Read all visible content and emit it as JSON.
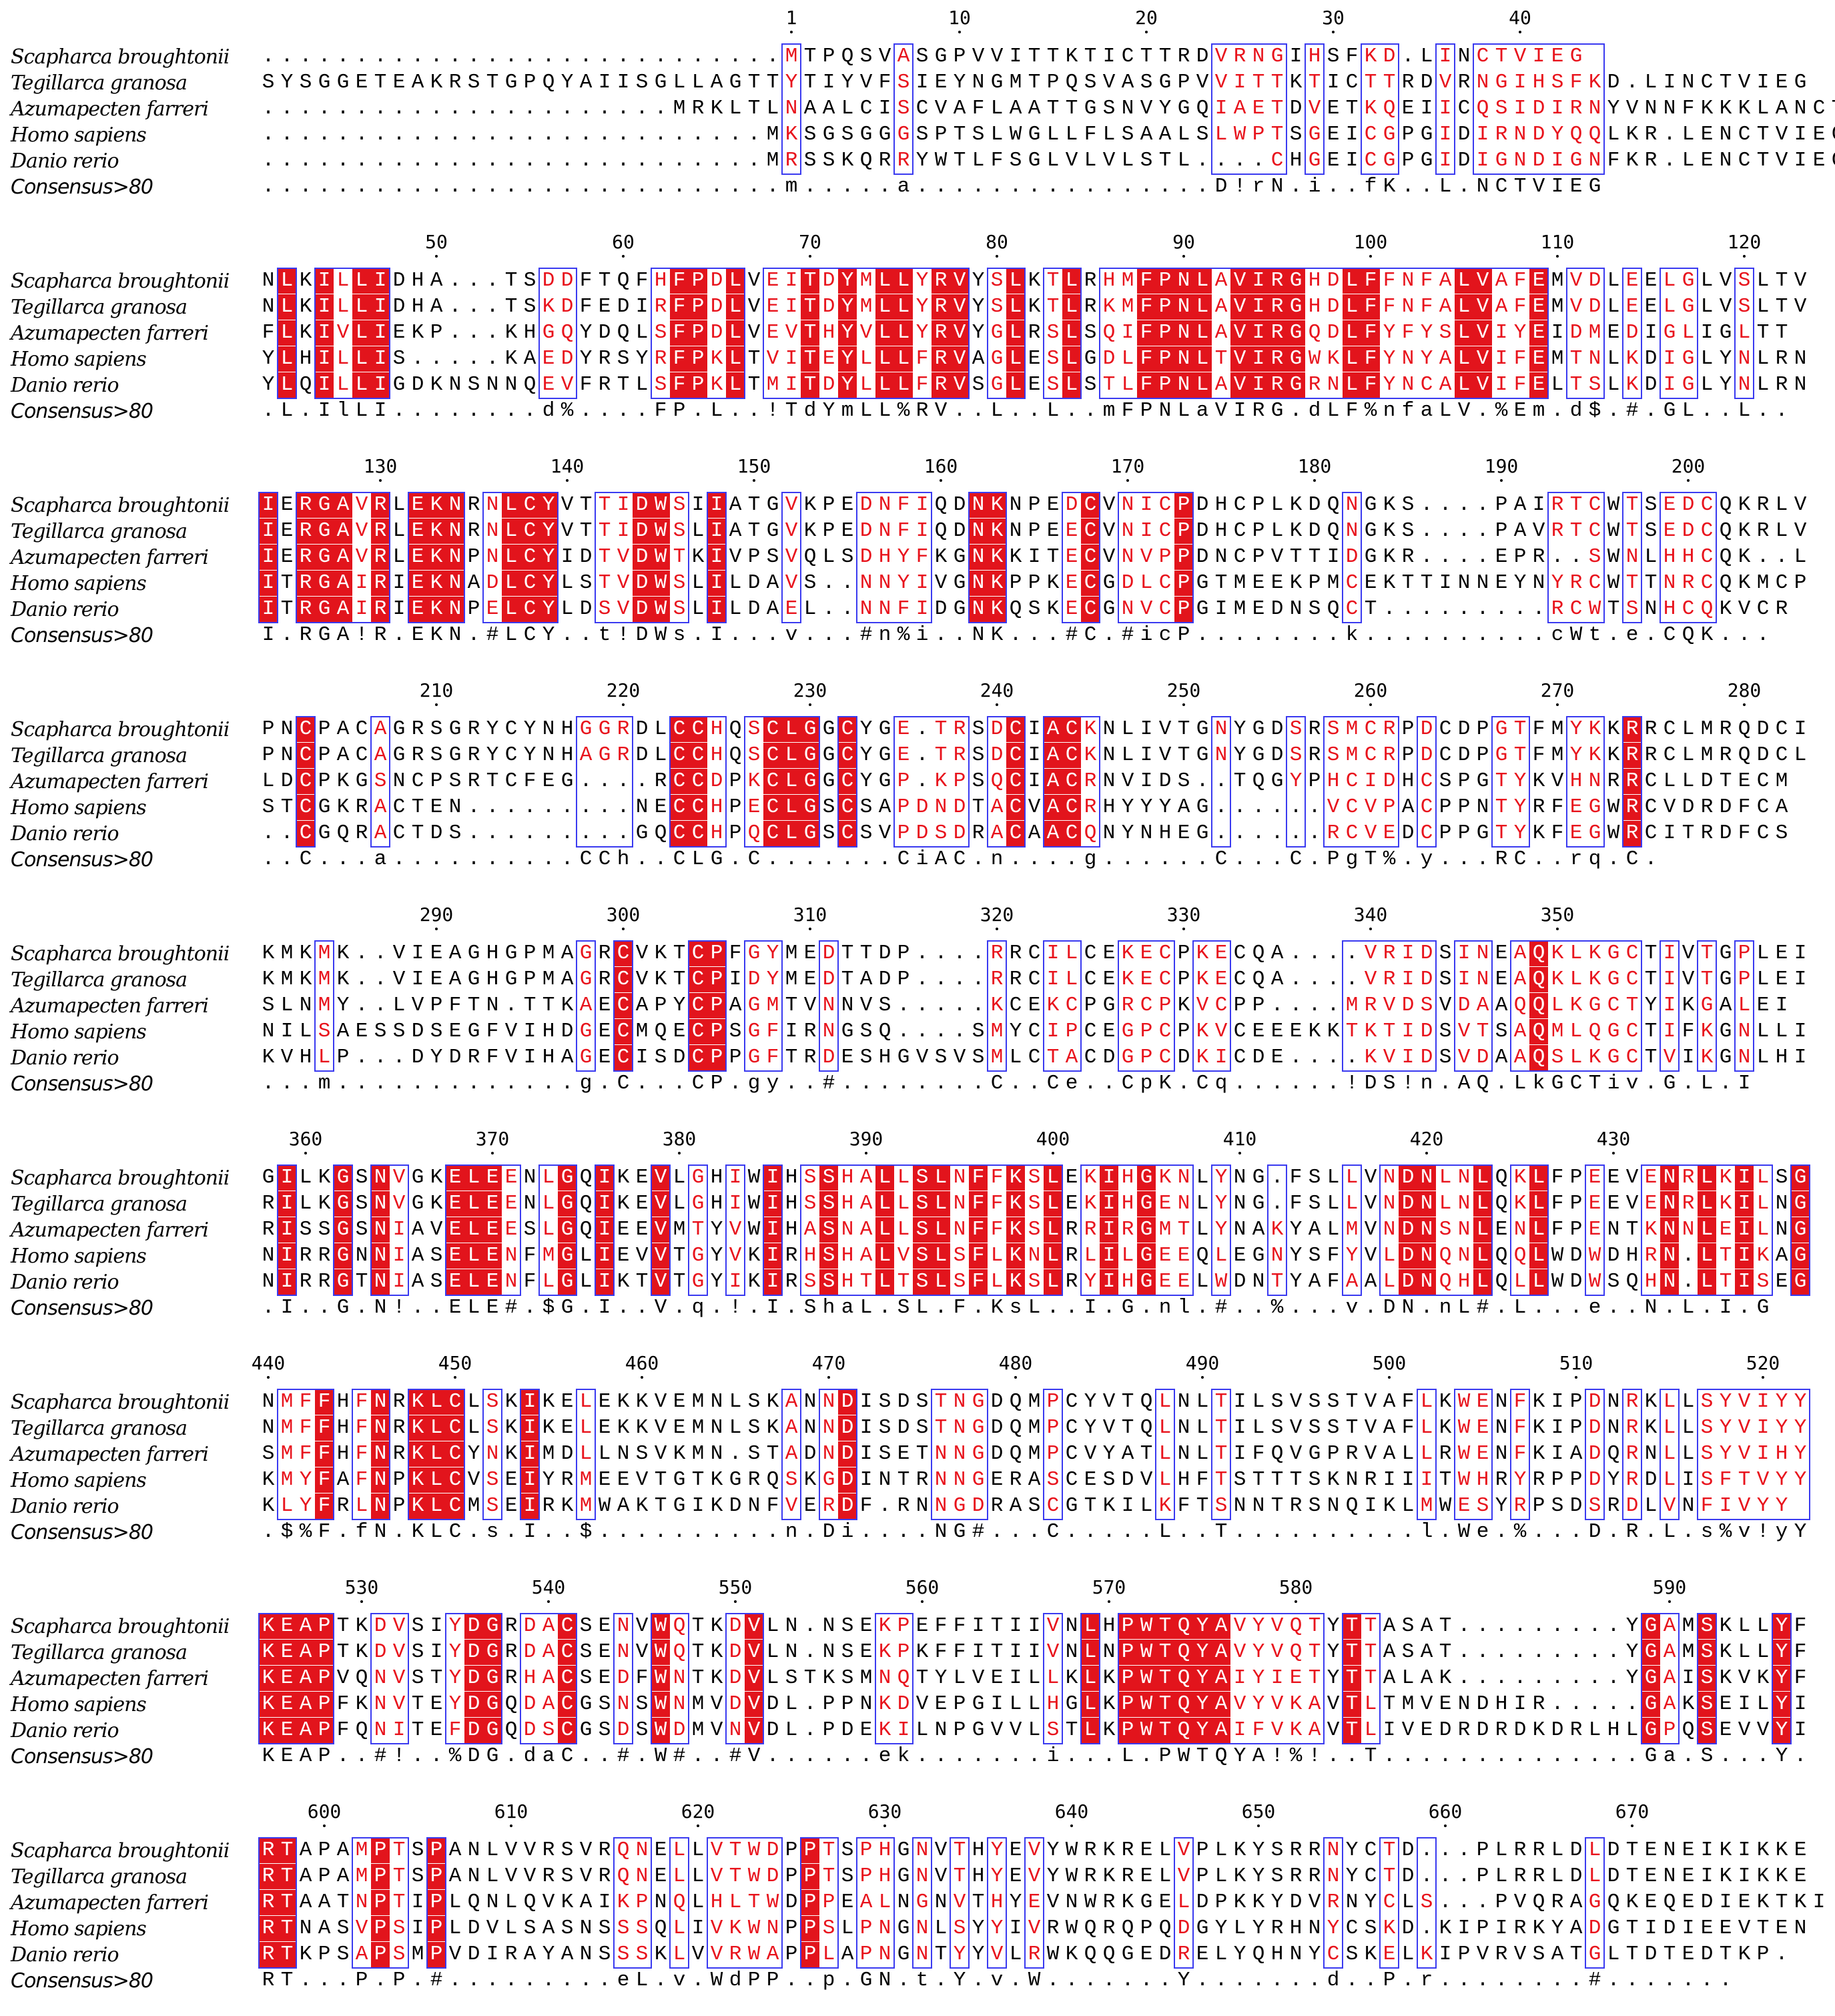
{
  "figure": {
    "type": "multiple_sequence_alignment",
    "color_scheme": {
      "identical_fill": "#e2141c",
      "identical_text": "#ffffff",
      "similar_text": "#e8131c",
      "box_border": "#3a3af0"
    },
    "consensus_label": "Consensus>80",
    "species": [
      "Scapharca broughtonii",
      "Tegillarca granosa",
      "Azumapecten farreri",
      "Homo sapiens",
      "Danio rerio"
    ],
    "blocks": [
      {
        "ticks": [
          {
            "label": "1",
            "col": 28
          },
          {
            "label": "10",
            "col": 37
          },
          {
            "label": "20",
            "col": 47
          },
          {
            "label": "30",
            "col": 57
          },
          {
            "label": "40",
            "col": 67
          }
        ],
        "rows": [
          "............................MTPQSVASGPVVITTKTICTTRDVRNGIHSFKD.LINCTVIEG",
          "SYSGGETEAKRSTGPQYAIISGLLAGTTYTIYVFSIEYNGMTPQSVASGPVVITTKTICTTRDVRNGIHSFKD.LINCTVIEG",
          "......................MRKLTLNAALCISCVAFLAATTGSNVYGQIAETDVETKQEIICQSIDIRNYVNNFKKKLANCTVIEG",
          "...........................MKSGSGGGSPTSLWGLLFLSAALSLWPTSGEICGPGIDIRNDYQQLKR.LENCTVIEG",
          "...........................MRSSKQRRYWTLFSGLVLVLSTL....CHGEICGPGIDIGNDIGNFKR.LENCTVIEG"
        ],
        "consensus": "............................m.....a................D!rN.i..fK..L.NCTVIEG"
      },
      {
        "ticks": [
          {
            "label": "50",
            "col": 9
          },
          {
            "label": "60",
            "col": 19
          },
          {
            "label": "70",
            "col": 29
          },
          {
            "label": "80",
            "col": 39
          },
          {
            "label": "90",
            "col": 49
          },
          {
            "label": "100",
            "col": 59
          },
          {
            "label": "110",
            "col": 69
          },
          {
            "label": "120",
            "col": 79
          }
        ],
        "rows": [
          "NLKILLIDHA...TSDDFTQFHFPDLVEITDYMLLYRVYSLKTLRHMFPNLAVIRGHDLFFNFALVAFEMVDLEELGLVSLTV",
          "NLKILLIDHA...TSKDFEDIRFPDLVEITDYMLLYRVYSLKTLRKMFPNLAVIRGHDLFFNFALVAFEMVDLEELGLVSLTV",
          "FLKIVLIEKP...KHGQYDQLSFPDLVEVTHYVLLYRVYGLRSLSQIFPNLAVIRGQDLFYFYSLVIYEIDMEDIGLIGLTT",
          "YLHILLIS.....KAEDYRSYRFPKLTVITEYLLLFRVAGLESLGDLFPNLTVIRGWKLFYNYALVIFEMTNLKDIGLYNLRN",
          "YLQILLIGDKNSNNQEVFRTLSFPKLTMITDYLLLFRVSGLESLSTLFPNLAVIRGRNLFYNCALVIFELTSLKDIGLYNLRN"
        ],
        "consensus": ".L.IlLI........d%....FP.L..!TdYmLL%RV..L..L..mFPNLaVIRG.dLF%nfaLV.%Em.d$.#.GL..L.."
      },
      {
        "ticks": [
          {
            "label": "130",
            "col": 6
          },
          {
            "label": "140",
            "col": 16
          },
          {
            "label": "150",
            "col": 26
          },
          {
            "label": "160",
            "col": 36
          },
          {
            "label": "170",
            "col": 46
          },
          {
            "label": "180",
            "col": 56
          },
          {
            "label": "190",
            "col": 66
          },
          {
            "label": "200",
            "col": 76
          }
        ],
        "rows": [
          "IERGAVRLEKNRNLCYVTTIDWSIIATGVKPEDNFIQDNKNPEDCVNICPDHCPLKDQNGKS....PAIRTCWTSEDCQKRLV",
          "IERGAVRLEKNRNLCYVTTIDWSLIATGVKPEDNFIQDNKNPEECVNICPDHCPLKDQNGKS....PAVRTCWTSEDCQKRLV",
          "IERGAVRLEKNPNLCYIDTVDWTKIVPSVQLSDHYFKGNKKITECVNVPPDNCPVTTIDGKR....EPR..SWNLHHCQK..L",
          "ITRGAIRIEKNADLCYLSTVDWSLILDAVS..NNYIVGNKPPKECGDLCPGTMEEKPMCEKTTINNEYNYRCWTTNRCQKMCP",
          "ITRGAIRIEKNPELCYLDSVDWSLILDAEL..NNFIDGNKQSKECGNVCPGIMEDNSQCT.........RCWTSNHCQKVCR"
        ],
        "consensus": "I.RGA!R.EKN.#LCY..t!DWs.I...v...#n%i..NK...#C.#icP........k..........cWt.e.CQK..."
      },
      {
        "ticks": [
          {
            "label": "210",
            "col": 9
          },
          {
            "label": "220",
            "col": 19
          },
          {
            "label": "230",
            "col": 29
          },
          {
            "label": "240",
            "col": 39
          },
          {
            "label": "250",
            "col": 49
          },
          {
            "label": "260",
            "col": 59
          },
          {
            "label": "270",
            "col": 69
          },
          {
            "label": "280",
            "col": 79
          }
        ],
        "rows": [
          "PNCPACAGRSGRYCYNHGGRDLCCHQSCLGGCYGE.TRSDCIACKNLIVTGNYGDSRSMCRPDCDPGTFMYKKRRCLMRQDCI",
          "PNCPACAGRSGRYCYNHAGRDLCCHQSCLGGCYGE.TRSDCIACKNLIVTGNYGDSRSMCRPDCDPGTFMYKKRRCLMRQDCL",
          "LDCPKGSNCPSRTCFEG....RCCDPKCLGGCYGP.KPSQCIACRNVIDS..TQGYPHCIDHCSPGTYKVHNRRCLLDTECM",
          "STCGKRACTEN.........NECCHPECLGSCSAPDNDTACVACRHYYYAG......VCVPACPPNTYRFEGWRCVDRDFCA",
          "..CGQRACTDS.........GQCCHPQCLGSCSVPDSDRACAACQNYNHEG......RCVEDCPPGTYKFEGWRCITRDFCS"
        ],
        "consensus": "..C...a..........CCh..CLG.C.......CiAC.n....g......C...C.PgT%.y...RC..rq.C."
      },
      {
        "ticks": [
          {
            "label": "290",
            "col": 9
          },
          {
            "label": "300",
            "col": 19
          },
          {
            "label": "310",
            "col": 29
          },
          {
            "label": "320",
            "col": 39
          },
          {
            "label": "330",
            "col": 49
          },
          {
            "label": "340",
            "col": 59
          },
          {
            "label": "350",
            "col": 69
          }
        ],
        "rows": [
          "KMKMK..VIEAGHGPMAGRCVKTCPFGYMEDTTDP....RRCILCEKECPKECQA....VRIDSINEAQKLKGCTIVTGPLEI",
          "KMKMK..VIEAGHGPMAGRCVKTCPIDYMEDTADP....RRCILCEKECPKECQA....VRIDSINEAQKLKGCTIVTGPLEI",
          "SLNMY..LVPFTN.TTKAECAPYCPAGMTVNNVS.....KCEKCPGRCPKVCPP....MRVDSVDAAQQLKGCTYIKGALEI",
          "NILSAESSDSEGFVIHDGECMQECPSGFIRNGSQ....SMYCIPCEGPCPKVCEEEKKTKTIDSVTSAQMLQGCTIFKGNLLI",
          "KVHLP...DYDRFVIHAGECISDCPPGFTRDESHGVSVSMLCTACDGPCDKICDE....KVIDSVDAAQSLKGCTVIKGNLHI"
        ],
        "consensus": "...m.............g.C...CP.gy..#........C..Ce..CpK.Cq......!DS!n.AQ.LkGCTiv.G.L.I"
      },
      {
        "ticks": [
          {
            "label": "360",
            "col": 2
          },
          {
            "label": "370",
            "col": 12
          },
          {
            "label": "380",
            "col": 22
          },
          {
            "label": "390",
            "col": 32
          },
          {
            "label": "400",
            "col": 42
          },
          {
            "label": "410",
            "col": 52
          },
          {
            "label": "420",
            "col": 62
          },
          {
            "label": "430",
            "col": 72
          }
        ],
        "rows": [
          "GILKGSNVGKELEENLGQIKEVLGHIWIHSSHALLSLNFFKSLEKIHGKNLYNG.FSLLVNDNLNLQKLFPEEVENRLKILSG",
          "RILKGSNVGKELEENLGQIKEVLGHIWIHSSHALLSLNFFKSLEKIHGENLYNG.FSLLVNDNLNLQKLFPEEVENRLKILNG",
          "RISSGSNIAVELEESLGQIEEVMTYVWIHASNALLSLNFFKSLRRIRGMTLYNAKYALMVNDNSNLENLFPENTKNNLEILNG",
          "NIRRGNNIASELENFMGLIEVVTGYVKIRHSHALVSLSFLKNLRLILGEEQLEGNYSFYVLDNQNLQQLWDWDHRN.LTIKAG",
          "NIRRGTNIASELENFLGLIKTVTGYIKIRSSHTLTSLSFLKSLRYIHGEELWDNTYAFAALDNQHLQLLWDWSQHN.LTISEG"
        ],
        "consensus": ".I..G.N!..ELE#.$G.I..V.q.!.I.ShaL.SL.F.KsL..I.G.nl.#..%...v.DN.nL#.L...e..N.L.I.G"
      },
      {
        "ticks": [
          {
            "label": "440",
            "col": 0
          },
          {
            "label": "450",
            "col": 10
          },
          {
            "label": "460",
            "col": 20
          },
          {
            "label": "470",
            "col": 30
          },
          {
            "label": "480",
            "col": 40
          },
          {
            "label": "490",
            "col": 50
          },
          {
            "label": "500",
            "col": 60
          },
          {
            "label": "510",
            "col": 70
          },
          {
            "label": "520",
            "col": 80
          }
        ],
        "rows": [
          "NMFFHFNRKLCLSKIKELEKKVEMNLSKANNDISDSTNGDQMPCYVTQLNLTILSVSSTVAFLKWENFKIPDNRKLLSYVIYY",
          "NMFFHFNRKLCLSKIKELEKKVEMNLSKANNDISDSTNGDQMPCYVTQLNLTILSVSSTVAFLKWENFKIPDNRKLLSYVIYY",
          "SMFFHFNRKLCYNKIMDLLNSVKMN.STADNDISETNNGDQMPCVYATLNLTIFQVGPRVALLRWENFKIADQRNLLSYVIHY",
          "KMYFAFNPKLCVSEIYRMEEVTGTKGRQSKGDINTRNNGERASCESDVLHFTSTTTSKNRIIITWHRYRPPDYRDLISFTVYY",
          "KLYFRLNPKLCMSEIRKMWAKTGIKDNFVERDF.RNNGDRASCGTKILKFTSNNTRSNQIKLMWESYRPSDSRDLVNFIVYY"
        ],
        "consensus": ".$%F.fN.KLC.s.I..$..........n.Di....NG#...C.....L..T..........l.We.%...D.R.L.s%v!yY"
      },
      {
        "ticks": [
          {
            "label": "530",
            "col": 5
          },
          {
            "label": "540",
            "col": 15
          },
          {
            "label": "550",
            "col": 25
          },
          {
            "label": "560",
            "col": 35
          },
          {
            "label": "570",
            "col": 45
          },
          {
            "label": "580",
            "col": 55
          },
          {
            "label": "590",
            "col": 75
          }
        ],
        "rows": [
          "KEAPTKDVSIYDGRDACSENVWQTKDVLN.NSEKPEFFITIIVNLHPWTQYAVYVQTYTTASAT.........YGAMSKLLYF",
          "KEAPTKDVSIYDGRDACSENVWQTKDVLN.NSEKPKFFITIIVNLNPWTQYAVYVQTYTTASAT.........YGAMSKLLYF",
          "KEAPVQNVSTYDGRHACSEDFWNTKDVLSTKSMNQTYLVEILLKLKPWTQYAIYIETYTTALAK.........YGAISKVKYF",
          "KEAPFKNVTEYDGQDACGSNSWNMVDVDL.PPNKDVEPGILLHGLKPWTQYAVYVKAVTLTMVENDHIR.....GAKSEILYI",
          "KEAPFQNITEFDGQDSCGSDSWDMVNVDL.PDEKILNPGVVLSTLKPWTQYAIFVKAVTLIVEDRDRDKDRLHLGPQSEVVYI"
        ],
        "consensus": "KEAP..#!..%DG.daC..#.W#..#V......ek.......i...L.PWTQYA!%!..T..............Ga.S...Y."
      },
      {
        "ticks": [
          {
            "label": "600",
            "col": 3
          },
          {
            "label": "610",
            "col": 13
          },
          {
            "label": "620",
            "col": 23
          },
          {
            "label": "630",
            "col": 33
          },
          {
            "label": "640",
            "col": 43
          },
          {
            "label": "650",
            "col": 53
          },
          {
            "label": "660",
            "col": 63
          },
          {
            "label": "670",
            "col": 73
          }
        ],
        "rows": [
          "RTAPAMPTSPANLVVRSVRQNELLVTWDPPTSPHGNVTHYEVYWRKRELVPLKYSRRNYCTD...PLRRLDLDTENEIKIKKE",
          "RTAPAMPTSPANLVVRSVRQNELLVTWDPPTSPHGNVTHYEVYWRKRELVPLKYSRRNYCTD...PLRRLDLDTENEIKIKKE",
          "RTAATNPTIPLQNLQVKAIKPNQLHLTWDPPEALNGNVTHYEVNWRKGELDPKKYDVRNYCLS...PVQRAGQKEQEDIEKTKI",
          "RTNASVPSIPLDVLSASNSSSQLIVKWNPPSLPNGNLSYYIVRWQRQPQDGYLYRHNYCSKD.KIPIRKYADGTIDIEEVTEN",
          "RTKPSAPSMPVDIRAYANSSSKLVVRWAPPLAPNGNTYYVLRWKQQGEDRELYQHNYCSKELKIPVRVSATGLTDTEDTKP."
        ],
        "consensus": "RT...P.P.#.........eL.v.WdPP..p.GN.t.Y.v.W.......Y.......d..P.r........#......."
      }
    ]
  }
}
